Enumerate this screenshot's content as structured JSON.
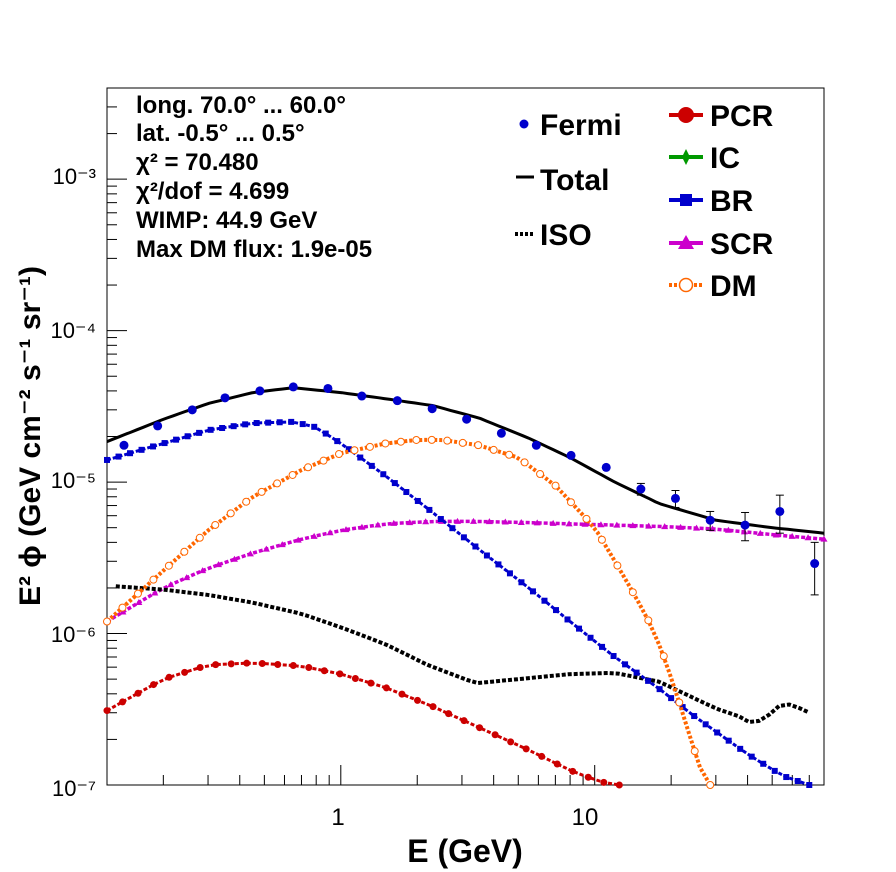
{
  "chart_data": {
    "type": "line",
    "xlabel": "E (GeV)",
    "ylabel": "E² ϕ (GeV cm⁻² s⁻¹ sr⁻¹)",
    "x_scale": "log",
    "y_scale": "log",
    "xlim": [
      0.12,
      80
    ],
    "ylim": [
      1e-07,
      0.004
    ],
    "x_tick_labels": [
      "1",
      "10"
    ],
    "y_tick_labels": [
      "10⁻⁷",
      "10⁻⁶",
      "10⁻⁵",
      "10⁻⁴",
      "10⁻³"
    ],
    "annotations": [
      "long. 70.0° ... 60.0°",
      "lat. -0.5° ... 0.5°",
      "χ² = 70.480",
      "χ²/dof = 4.699",
      "WIMP: 44.9 GeV",
      "Max DM flux: 1.9e-05"
    ],
    "legend_left": [
      "Fermi",
      "Total",
      "ISO"
    ],
    "legend_right": [
      "PCR",
      "IC",
      "BR",
      "SCR",
      "DM"
    ],
    "legend_placement": "top-right",
    "grid": false,
    "colors": {
      "fermi": "#0000cc",
      "total": "#000000",
      "iso": "#000000",
      "pcr": "#cc0000",
      "ic": "#009900",
      "br": "#0000cc",
      "scr": "#cc00cc",
      "dm": "#ff6600"
    },
    "fermi": {
      "x": [
        0.14,
        0.19,
        0.26,
        0.35,
        0.48,
        0.65,
        0.89,
        1.21,
        1.67,
        2.29,
        3.13,
        4.29,
        5.89,
        8.07,
        11.1,
        15.2,
        20.8,
        28.5,
        39.1,
        53.6,
        73.5
      ],
      "y": [
        1.75e-05,
        2.35e-05,
        3e-05,
        3.6e-05,
        4e-05,
        4.25e-05,
        4.15e-05,
        3.7e-05,
        3.45e-05,
        3.05e-05,
        2.6e-05,
        2.1e-05,
        1.75e-05,
        1.5e-05,
        1.25e-05,
        9e-06,
        7.8e-06,
        5.6e-06,
        5.2e-06,
        6.4e-06,
        2.9e-06
      ],
      "err_lo": [
        0,
        0,
        0,
        0,
        0,
        0,
        0,
        0,
        0,
        0,
        0,
        0,
        0,
        0,
        0,
        8e-07,
        1e-06,
        8e-07,
        1.1e-06,
        1.8e-06,
        1.1e-06
      ],
      "err_hi": [
        0,
        0,
        0,
        0,
        0,
        0,
        0,
        0,
        0,
        0,
        0,
        0,
        0,
        0,
        0,
        8e-07,
        1e-06,
        8e-07,
        1.1e-06,
        1.8e-06,
        1.1e-06
      ]
    },
    "series": [
      {
        "name": "Total",
        "x": [
          0.12,
          0.2,
          0.3,
          0.45,
          0.65,
          1.0,
          1.5,
          2.3,
          3.5,
          5.5,
          8.0,
          12,
          18,
          30,
          50,
          80
        ],
        "y": [
          1.85e-05,
          2.6e-05,
          3.3e-05,
          3.9e-05,
          4.2e-05,
          3.9e-05,
          3.55e-05,
          3.2e-05,
          2.65e-05,
          1.95e-05,
          1.45e-05,
          1e-05,
          7.2e-06,
          5.6e-06,
          5e-06,
          4.6e-06
        ]
      },
      {
        "name": "ISO",
        "x": [
          0.13,
          0.2,
          0.3,
          0.45,
          0.7,
          1.0,
          1.5,
          2.2,
          3.4,
          5.0,
          8.0,
          12,
          18,
          25,
          30,
          38,
          42,
          50,
          55,
          62,
          70
        ],
        "y": [
          2.05e-06,
          1.95e-06,
          1.8e-06,
          1.6e-06,
          1.35e-06,
          1.1e-06,
          8.5e-07,
          6.2e-07,
          4.7e-07,
          5e-07,
          5.4e-07,
          5.5e-07,
          4.8e-07,
          3.7e-07,
          3.2e-07,
          2.8e-07,
          2.5e-07,
          3e-07,
          3.5e-07,
          3.3e-07,
          3e-07
        ]
      },
      {
        "name": "PCR",
        "x": [
          0.12,
          0.2,
          0.3,
          0.45,
          0.7,
          1.0,
          1.5,
          2.3,
          3.5,
          5.5,
          8.0,
          10.5,
          12.5
        ],
        "y": [
          3.1e-07,
          5e-07,
          6.2e-07,
          6.4e-07,
          6.1e-07,
          5.4e-07,
          4.4e-07,
          3.3e-07,
          2.4e-07,
          1.7e-07,
          1.25e-07,
          1.05e-07,
          1e-07
        ]
      },
      {
        "name": "BR",
        "x": [
          0.12,
          0.2,
          0.3,
          0.45,
          0.65,
          0.8,
          1.0,
          1.5,
          2.3,
          3.5,
          5.5,
          8.0,
          12,
          18,
          25,
          40,
          55,
          70
        ],
        "y": [
          1.4e-05,
          1.8e-05,
          2.2e-05,
          2.45e-05,
          2.5e-05,
          2.3e-05,
          1.8e-05,
          1.1e-05,
          6.3e-06,
          3.6e-06,
          2e-06,
          1.2e-06,
          7e-07,
          4.3e-07,
          2.8e-07,
          1.6e-07,
          1.15e-07,
          1e-07
        ]
      },
      {
        "name": "SCR",
        "x": [
          0.12,
          0.2,
          0.3,
          0.45,
          0.7,
          1.0,
          1.5,
          2.3,
          3.5,
          5.5,
          8.0,
          12,
          18,
          30,
          50,
          80
        ],
        "y": [
          1.2e-06,
          2e-06,
          2.7e-06,
          3.4e-06,
          4.2e-06,
          4.8e-06,
          5.3e-06,
          5.5e-06,
          5.5e-06,
          5.4e-06,
          5.3e-06,
          5.2e-06,
          5.1e-06,
          4.9e-06,
          4.5e-06,
          4.2e-06
        ]
      },
      {
        "name": "DM",
        "x": [
          0.12,
          0.2,
          0.3,
          0.45,
          0.7,
          1.0,
          1.5,
          2.0,
          2.5,
          3.5,
          5.0,
          7.0,
          10,
          13,
          16,
          18.5,
          21,
          23.5,
          26,
          28.5
        ],
        "y": [
          1.2e-06,
          2.6e-06,
          4.8e-06,
          8e-06,
          1.2e-05,
          1.55e-05,
          1.8e-05,
          1.9e-05,
          1.9e-05,
          1.75e-05,
          1.45e-05,
          9.5e-06,
          5e-06,
          2.4e-06,
          1.3e-06,
          7.5e-07,
          4e-07,
          2.2e-07,
          1.3e-07,
          1e-07
        ]
      }
    ]
  }
}
